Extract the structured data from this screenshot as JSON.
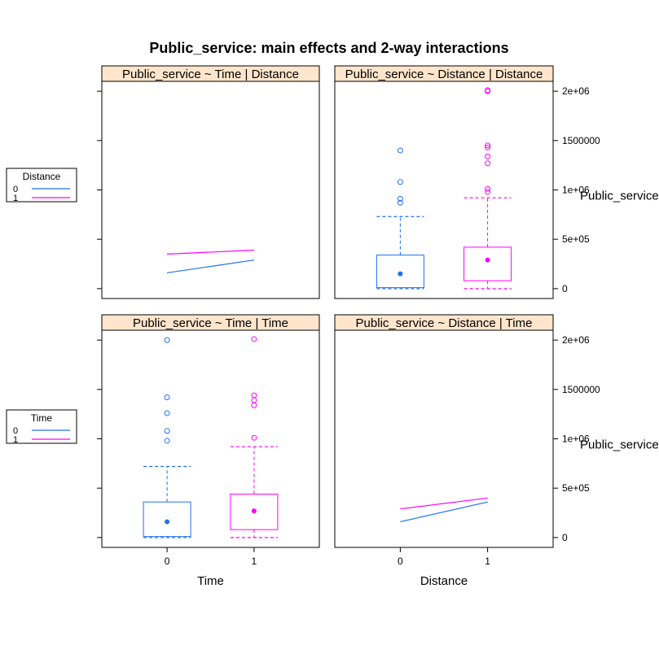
{
  "title": "Public_service: main effects and 2-way interactions",
  "colors": {
    "level0": "#1f6ff2",
    "level1": "#ff00ff",
    "strip": "#ffe5cc",
    "frame": "#000000"
  },
  "legends": [
    {
      "title": "Distance",
      "entries": [
        "0",
        "1"
      ]
    },
    {
      "title": "Time",
      "entries": [
        "0",
        "1"
      ]
    }
  ],
  "y_axis": {
    "ticks": [
      0,
      500000,
      1000000,
      1500000,
      2000000
    ],
    "tick_labels": [
      "0",
      "5e+05",
      "1e+06",
      "1500000",
      "2e+06"
    ],
    "label": "Public_service",
    "ylim": [
      -100000,
      2100000
    ]
  },
  "x_axis": {
    "tick_labels": [
      "0",
      "1"
    ],
    "bottom_labels": [
      "Time",
      "Distance"
    ]
  },
  "chart_data": [
    {
      "type": "line",
      "strip": "Public_service ~ Time | Distance",
      "x": [
        0,
        1
      ],
      "series": [
        {
          "name": "0",
          "values": [
            160000,
            290000
          ]
        },
        {
          "name": "1",
          "values": [
            350000,
            390000
          ]
        }
      ]
    },
    {
      "type": "box",
      "strip": "Public_service ~ Distance | Distance",
      "categories": [
        "0",
        "1"
      ],
      "boxes": [
        {
          "whisker_low": 0,
          "q1": 10000,
          "median": 150000,
          "q3": 340000,
          "whisker_high": 730000,
          "outliers": [
            870000,
            910000,
            1080000,
            1400000
          ]
        },
        {
          "whisker_low": 0,
          "q1": 80000,
          "median": 290000,
          "q3": 420000,
          "whisker_high": 920000,
          "outliers": [
            980000,
            1010000,
            1270000,
            1340000,
            1430000,
            1450000,
            2000000,
            2010000
          ]
        }
      ]
    },
    {
      "type": "box",
      "strip": "Public_service ~ Time | Time",
      "categories": [
        "0",
        "1"
      ],
      "boxes": [
        {
          "whisker_low": 0,
          "q1": 10000,
          "median": 160000,
          "q3": 360000,
          "whisker_high": 720000,
          "outliers": [
            980000,
            1080000,
            1260000,
            1420000,
            2000000
          ]
        },
        {
          "whisker_low": 0,
          "q1": 80000,
          "median": 270000,
          "q3": 440000,
          "whisker_high": 920000,
          "outliers": [
            1010000,
            1340000,
            1390000,
            1440000,
            2010000
          ]
        }
      ]
    },
    {
      "type": "line",
      "strip": "Public_service ~ Distance | Time",
      "x": [
        0,
        1
      ],
      "series": [
        {
          "name": "0",
          "values": [
            160000,
            360000
          ]
        },
        {
          "name": "1",
          "values": [
            290000,
            400000
          ]
        }
      ]
    }
  ]
}
